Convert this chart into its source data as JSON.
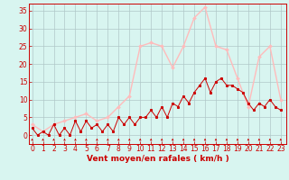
{
  "xlabel": "Vent moyen/en rafales ( km/h )",
  "background_color": "#d8f5f0",
  "grid_color": "#b0c8c8",
  "ylim": [
    -2.5,
    37
  ],
  "xlim": [
    -0.3,
    23.5
  ],
  "yticks": [
    0,
    5,
    10,
    15,
    20,
    25,
    30,
    35
  ],
  "xticks": [
    0,
    1,
    2,
    3,
    4,
    5,
    6,
    7,
    8,
    9,
    10,
    11,
    12,
    13,
    14,
    15,
    16,
    17,
    18,
    19,
    20,
    21,
    22,
    23
  ],
  "vent_moyen_x": [
    0,
    0.5,
    1,
    1.5,
    2,
    2.5,
    3,
    3.5,
    4,
    4.5,
    5,
    5.5,
    6,
    6.5,
    7,
    7.5,
    8,
    8.5,
    9,
    9.5,
    10,
    10.5,
    11,
    11.5,
    12,
    12.5,
    13,
    13.5,
    14,
    14.5,
    15,
    15.5,
    16,
    16.5,
    17,
    17.5,
    18,
    18.5,
    19,
    19.5,
    20,
    20.5,
    21,
    21.5,
    22,
    22.5,
    23
  ],
  "vent_moyen_y": [
    2,
    0,
    1,
    0,
    3,
    0,
    2,
    0,
    4,
    1,
    4,
    2,
    3,
    1,
    3,
    1,
    5,
    3,
    5,
    3,
    5,
    5,
    7,
    5,
    8,
    5,
    9,
    8,
    11,
    9,
    12,
    14,
    16,
    12,
    15,
    16,
    14,
    14,
    13,
    12,
    9,
    7,
    9,
    8,
    10,
    8,
    7
  ],
  "rafales_x": [
    0,
    1,
    2,
    3,
    4,
    5,
    6,
    7,
    8,
    9,
    10,
    11,
    12,
    13,
    14,
    15,
    16,
    17,
    18,
    19,
    20,
    21,
    22,
    23
  ],
  "rafales_y": [
    3,
    1,
    3,
    4,
    5,
    6,
    4,
    5,
    8,
    11,
    25,
    26,
    25,
    19,
    25,
    33,
    36,
    25,
    24,
    16,
    8,
    22,
    25,
    10
  ],
  "vent_color": "#cc0000",
  "rafales_color": "#ffbbbb",
  "dir_color": "#cc0000",
  "dir_x": [
    0,
    1,
    2,
    3,
    4,
    5,
    6,
    7,
    8,
    9,
    10,
    11,
    12,
    13,
    14,
    15,
    16,
    17,
    18,
    19,
    20,
    21,
    22,
    23
  ],
  "tick_fontsize": 5.5,
  "label_fontsize": 6.5
}
